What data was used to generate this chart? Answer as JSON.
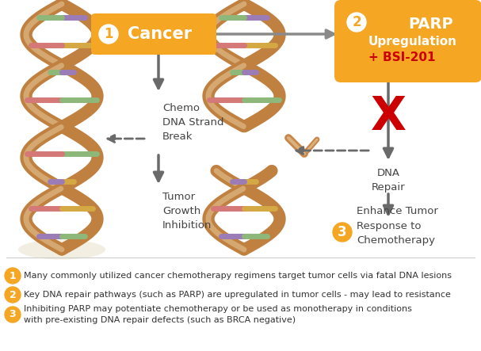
{
  "bg_color": "#ffffff",
  "orange": "#F5A623",
  "dark_orange": "#E8820C",
  "gray": "#7a7a7a",
  "dark_gray": "#555555",
  "red": "#CC0000",
  "dna_light": "#E8D5B0",
  "dna_dark": "#C8874A",
  "dna_darker": "#8B5A1A",
  "ladder_colors": [
    "#9B7CB6",
    "#D4A843",
    "#8DB87A",
    "#D47878",
    "#9B7CB6",
    "#8DB87A",
    "#D4A843",
    "#D47878"
  ],
  "label_chemo": "Chemo\nDNA Strand\nBreak",
  "label_tumor": "Tumor\nGrowth\nInhibition",
  "label_dna_repair": "DNA\nRepair",
  "label_enhance": "Enhance Tumor\nResponse to\nChemotherapy",
  "note1": "Many commonly utilized cancer chemotherapy regimens target tumor cells via fatal DNA lesions",
  "note2": "Key DNA repair pathways (such as PARP) are upregulated in tumor cells - may lead to resistance",
  "note3_line1": "Inhibiting PARP may potentiate chemotherapy or be used as monotherapy in conditions",
  "note3_line2": "with pre-existing DNA repair defects (such as BRCA negative)",
  "fig_width": 6.07,
  "fig_height": 4.43,
  "dpi": 100
}
